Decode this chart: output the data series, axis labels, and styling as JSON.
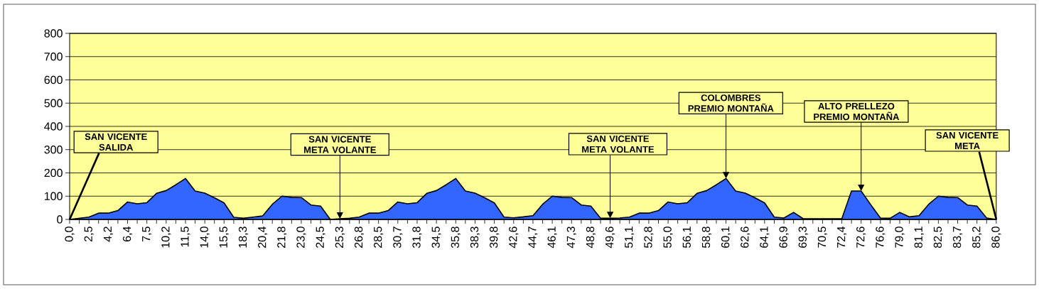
{
  "chart_data": {
    "type": "area",
    "categories": [
      "0,0",
      null,
      "2,5",
      null,
      "4,2",
      null,
      "6,4",
      null,
      "7,5",
      null,
      "10,2",
      null,
      "11,5",
      null,
      "14,0",
      null,
      "15,5",
      null,
      "18,3",
      null,
      "20,4",
      null,
      "21,8",
      null,
      "23,0",
      null,
      "24,5",
      null,
      "25,3",
      null,
      "26,8",
      null,
      "28,5",
      null,
      "30,7",
      null,
      "31,8",
      null,
      "34,5",
      null,
      "35,8",
      null,
      "38,3",
      null,
      "39,8",
      null,
      "42,6",
      null,
      "44,7",
      null,
      "46,1",
      null,
      "47,3",
      null,
      "48,8",
      null,
      "49,6",
      null,
      "51,1",
      null,
      "52,8",
      null,
      "55,0",
      null,
      "56,1",
      null,
      "58,8",
      null,
      "60,1",
      null,
      "62,6",
      null,
      "64,1",
      null,
      "66,9",
      null,
      "69,3",
      null,
      "70,5",
      null,
      "72,4",
      null,
      "72,6",
      null,
      "76,6",
      null,
      "79,0",
      null,
      "81,1",
      null,
      "82,5",
      null,
      "83,7",
      null,
      "85,2",
      null,
      "86,0"
    ],
    "values": [
      0,
      5,
      10,
      27,
      27,
      38,
      75,
      67,
      72,
      112,
      124,
      149,
      176,
      122,
      113,
      93,
      71,
      9,
      5,
      10,
      15,
      65,
      100,
      95,
      94,
      62,
      57,
      0,
      3,
      5,
      10,
      27,
      27,
      38,
      75,
      67,
      72,
      112,
      124,
      149,
      176,
      122,
      113,
      93,
      71,
      10,
      7,
      11,
      16,
      65,
      100,
      95,
      94,
      62,
      57,
      5,
      5,
      6,
      10,
      27,
      27,
      38,
      75,
      67,
      72,
      112,
      124,
      149,
      176,
      122,
      113,
      93,
      71,
      10,
      6,
      30,
      3,
      3,
      3,
      3,
      3,
      122,
      122,
      63,
      6,
      5,
      30,
      11,
      16,
      65,
      100,
      95,
      94,
      62,
      57,
      6,
      0
    ],
    "color": "#3366ff",
    "ylim": [
      0,
      800
    ],
    "yticks": [
      0,
      100,
      200,
      300,
      400,
      500,
      600,
      700,
      800
    ],
    "grid": "y",
    "annotations": [
      {
        "text": "SAN VICENTE SALIDA",
        "x": "0,0",
        "y": 0
      },
      {
        "text": "SAN VICENTE META VOLANTE",
        "x": "25,3",
        "y": 3
      },
      {
        "text": "SAN VICENTE META VOLANTE",
        "x": "49,6",
        "y": 5
      },
      {
        "text": "COLOMBRES PREMIO MONTAÑA",
        "x": "60,1",
        "y": 176
      },
      {
        "text": "ALTO PRELLEZO PREMIO MONTAÑA",
        "x": "72,6",
        "y": 122
      },
      {
        "text": "SAN VICENTE META",
        "x": "86,0",
        "y": 0
      }
    ]
  }
}
